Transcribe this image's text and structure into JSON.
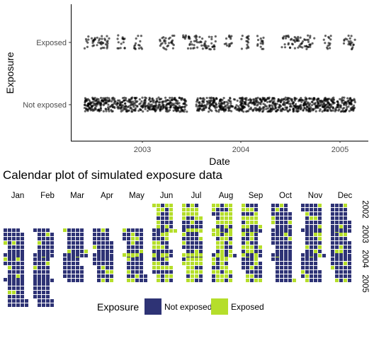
{
  "colors": {
    "not_exposed": "#2e3375",
    "exposed": "#b5de2b",
    "point": "#000000",
    "axis": "#000000"
  },
  "chart_data": [
    {
      "type": "scatter",
      "xlabel": "Date",
      "ylabel": "Exposure",
      "x_ticks": [
        "2003",
        "2004",
        "2005"
      ],
      "y_categories": [
        "Not exposed",
        "Exposed"
      ],
      "x_range": [
        "2002-06-01",
        "2005-02-28"
      ],
      "grid": false,
      "jitter": true,
      "point_alpha": 0.6,
      "exposed_periods": [
        {
          "start": "2002-06-01",
          "end": "2002-08-31"
        },
        {
          "start": "2002-10-01",
          "end": "2002-10-31"
        },
        {
          "start": "2002-12-01",
          "end": "2002-12-31"
        },
        {
          "start": "2003-03-01",
          "end": "2003-03-31"
        },
        {
          "start": "2003-04-01",
          "end": "2003-04-30"
        },
        {
          "start": "2003-06-01",
          "end": "2003-09-30"
        },
        {
          "start": "2003-11-01",
          "end": "2003-11-30"
        },
        {
          "start": "2004-01-01",
          "end": "2004-01-31"
        },
        {
          "start": "2004-03-01",
          "end": "2004-03-31"
        },
        {
          "start": "2004-06-01",
          "end": "2004-09-30"
        },
        {
          "start": "2004-11-01",
          "end": "2004-11-30"
        },
        {
          "start": "2005-01-15",
          "end": "2005-02-28"
        }
      ],
      "not_exposed_periods": [
        {
          "start": "2002-06-01",
          "end": "2003-06-15"
        },
        {
          "start": "2003-07-20",
          "end": "2005-02-28"
        }
      ]
    },
    {
      "type": "heatmap",
      "title": "Calendar plot of simulated exposure data",
      "months": [
        "Jan",
        "Feb",
        "Mar",
        "Apr",
        "May",
        "Jun",
        "Jul",
        "Aug",
        "Sep",
        "Oct",
        "Nov",
        "Dec"
      ],
      "years": [
        "2002",
        "2003",
        "2004",
        "2005"
      ],
      "first_month": "2002-06",
      "last_month": "2005-02",
      "exposed_fraction_by_month": {
        "2002": [
          null,
          null,
          null,
          null,
          null,
          0.45,
          0.55,
          0.55,
          0.5,
          0.25,
          0.1,
          0.1
        ],
        "2003": [
          0.1,
          0.05,
          0.1,
          0.1,
          0.2,
          0.45,
          0.3,
          0.6,
          0.5,
          0.1,
          0.3,
          0.1
        ],
        "2004": [
          0.1,
          0.1,
          0.05,
          0.1,
          0.3,
          0.5,
          0.75,
          0.55,
          0.35,
          0.05,
          0.1,
          0.1
        ],
        "2005": [
          0.1,
          0.1,
          null,
          null,
          null,
          null,
          null,
          null,
          null,
          null,
          null,
          null
        ]
      },
      "legend": {
        "title": "Exposure",
        "items": [
          {
            "label": "Not exposed",
            "color": "#2e3375"
          },
          {
            "label": "Exposed",
            "color": "#b5de2b"
          }
        ],
        "placement": "bottom"
      }
    }
  ]
}
